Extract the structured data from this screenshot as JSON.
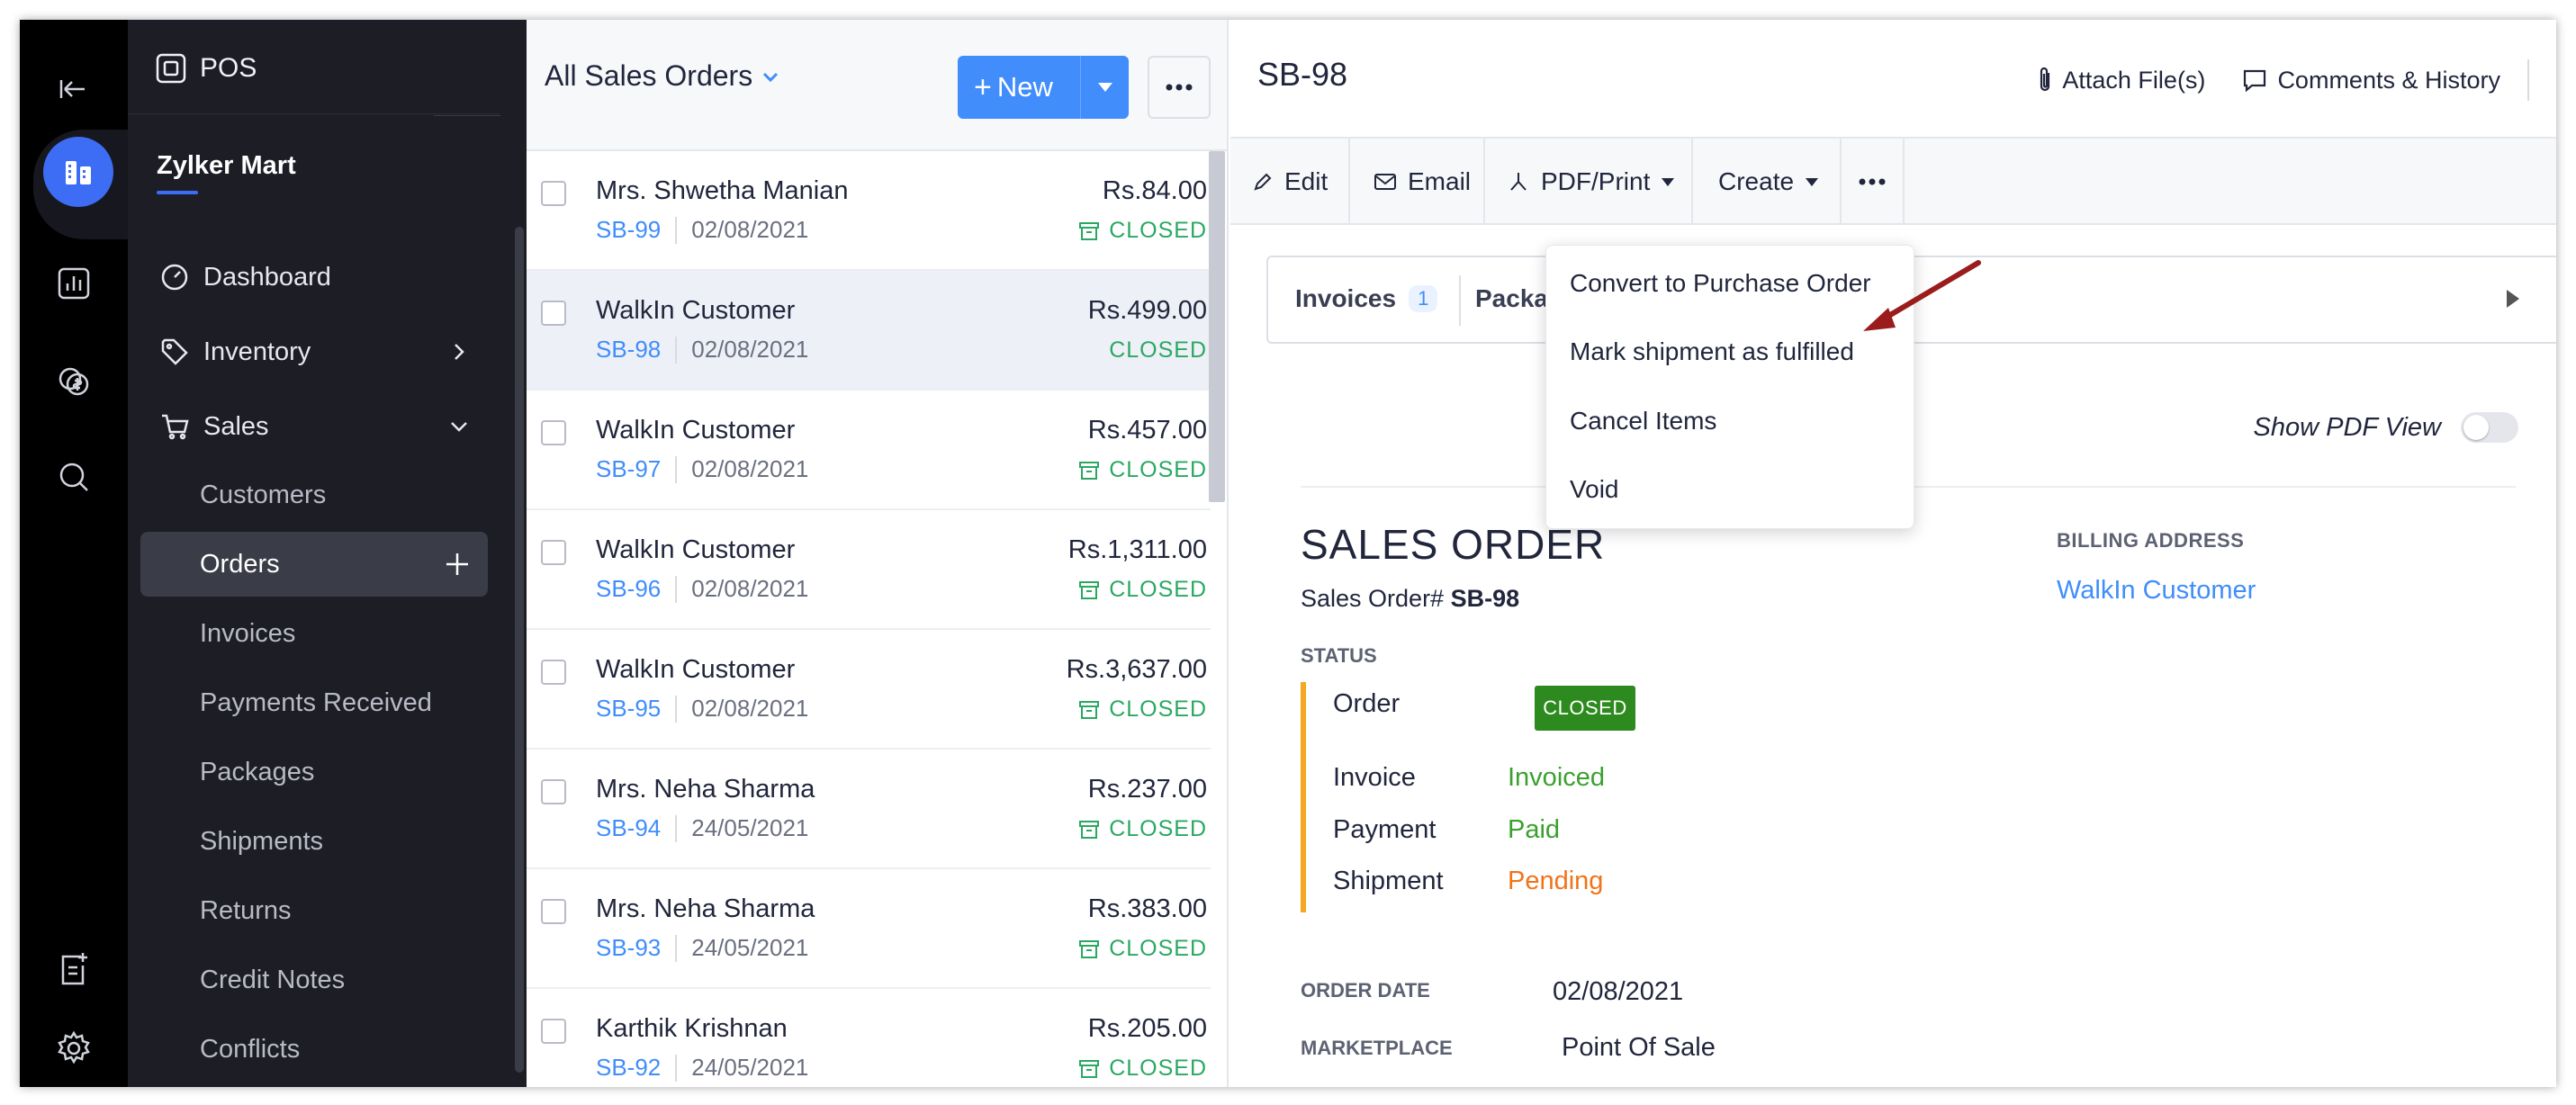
{
  "app": {
    "title": "POS",
    "org_name": "Zylker Mart"
  },
  "rail": {
    "items": [
      "back-arrow-icon",
      "buildings-icon",
      "chart-icon",
      "currency-icon",
      "search-icon",
      "notes-icon",
      "gear-icon"
    ],
    "active_color": "#3d6df5"
  },
  "sidebar": {
    "nav": [
      {
        "label": "Dashboard",
        "icon": "dashboard-icon"
      },
      {
        "label": "Inventory",
        "icon": "tag-icon"
      },
      {
        "label": "Sales",
        "icon": "cart-icon"
      }
    ],
    "sales_items": [
      "Customers",
      "Orders",
      "Invoices",
      "Payments Received",
      "Packages",
      "Shipments",
      "Returns",
      "Credit Notes",
      "Conflicts"
    ],
    "active_item": "Orders"
  },
  "list": {
    "title": "All Sales Orders",
    "new_label": "New",
    "rows": [
      {
        "name": "Mrs. Shwetha Manian",
        "number": "SB-99",
        "date": "02/08/2021",
        "amount": "Rs.84.00",
        "status": "CLOSED",
        "archived": true
      },
      {
        "name": "WalkIn Customer",
        "number": "SB-98",
        "date": "02/08/2021",
        "amount": "Rs.499.00",
        "status": "CLOSED",
        "archived": false
      },
      {
        "name": "WalkIn Customer",
        "number": "SB-97",
        "date": "02/08/2021",
        "amount": "Rs.457.00",
        "status": "CLOSED",
        "archived": true
      },
      {
        "name": "WalkIn Customer",
        "number": "SB-96",
        "date": "02/08/2021",
        "amount": "Rs.1,311.00",
        "status": "CLOSED",
        "archived": true
      },
      {
        "name": "WalkIn Customer",
        "number": "SB-95",
        "date": "02/08/2021",
        "amount": "Rs.3,637.00",
        "status": "CLOSED",
        "archived": true
      },
      {
        "name": "Mrs. Neha Sharma",
        "number": "SB-94",
        "date": "24/05/2021",
        "amount": "Rs.237.00",
        "status": "CLOSED",
        "archived": true
      },
      {
        "name": "Mrs. Neha Sharma",
        "number": "SB-93",
        "date": "24/05/2021",
        "amount": "Rs.383.00",
        "status": "CLOSED",
        "archived": true
      },
      {
        "name": "Karthik Krishnan",
        "number": "SB-92",
        "date": "24/05/2021",
        "amount": "Rs.205.00",
        "status": "CLOSED",
        "archived": true
      }
    ]
  },
  "detail": {
    "title": "SB-98",
    "attach_label": "Attach File(s)",
    "comments_label": "Comments & History",
    "toolbar": {
      "edit": "Edit",
      "email": "Email",
      "pdf": "PDF/Print",
      "create": "Create"
    },
    "tabs": {
      "invoices": "Invoices",
      "invoices_count": "1",
      "packages": "Packa"
    },
    "pdf_view_label": "Show PDF View",
    "doc_title": "SALES ORDER",
    "order_label": "Sales Order#",
    "order_number": "SB-98",
    "billing_label": "BILLING ADDRESS",
    "billing_name": "WalkIn Customer",
    "status_label": "STATUS",
    "status": {
      "order_label": "Order",
      "order_value": "CLOSED",
      "invoice_label": "Invoice",
      "invoice_value": "Invoiced",
      "payment_label": "Payment",
      "payment_value": "Paid",
      "shipment_label": "Shipment",
      "shipment_value": "Pending"
    },
    "order_date_label": "ORDER DATE",
    "order_date": "02/08/2021",
    "marketplace_label": "MARKETPLACE",
    "marketplace": "Point Of Sale"
  },
  "more_menu": {
    "items": [
      "Convert to Purchase Order",
      "Mark shipment as fulfilled",
      "Cancel Items",
      "Void"
    ]
  },
  "colors": {
    "accent": "#408dfb",
    "closed": "#2aa862",
    "invoiced": "#3aa12e",
    "pending": "#f0741a",
    "annotation": "#9b1c1c"
  }
}
